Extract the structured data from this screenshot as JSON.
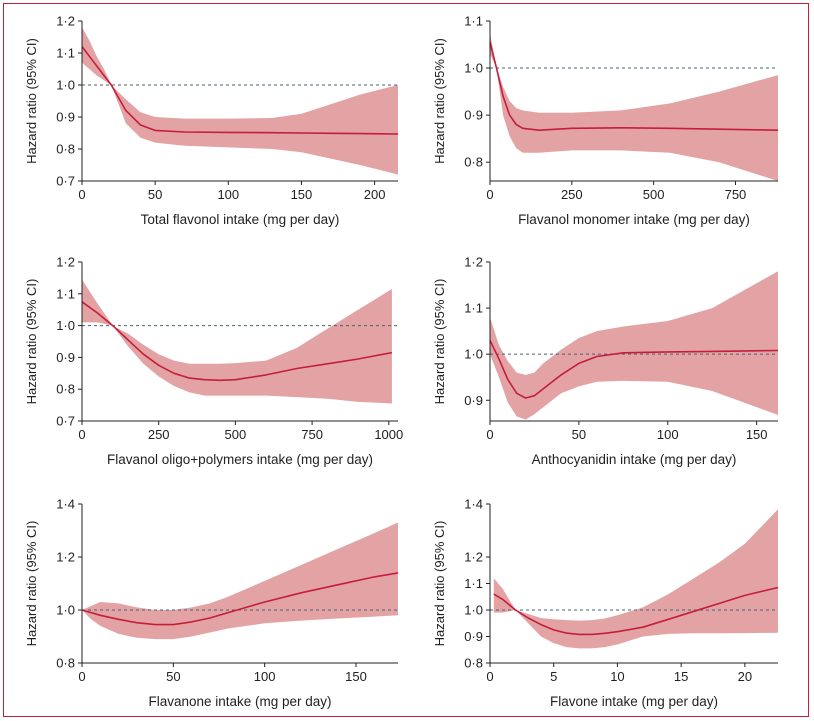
{
  "figure": {
    "border_color": "#c41e3a",
    "ci_color": "#e3a3a4",
    "line_color": "#c41e3a",
    "ref_line_color": "#4a6070"
  },
  "chart_data": [
    {
      "type": "line",
      "xlabel": "Total flavonol intake (mg per day)",
      "ylabel": "Hazard ratio (95% CI)",
      "xlim": [
        0,
        216
      ],
      "ylim": [
        0.7,
        1.2
      ],
      "xticks": [
        0,
        50,
        100,
        150,
        200
      ],
      "xtick_labels": [
        "0",
        "50",
        "100",
        "150",
        "200"
      ],
      "yticks": [
        0.7,
        0.8,
        0.9,
        1.0,
        1.1,
        1.2
      ],
      "ytick_labels": [
        "0·7",
        "0·8",
        "0·9",
        "1·0",
        "1·1",
        "1·2"
      ],
      "reference_line": 1.0,
      "series": [
        {
          "x": [
            0,
            5,
            10,
            15,
            20,
            30,
            40,
            50,
            70,
            100,
            130,
            150,
            170,
            190,
            216
          ],
          "y": [
            1.12,
            1.09,
            1.06,
            1.03,
            1.0,
            0.92,
            0.875,
            0.858,
            0.853,
            0.852,
            0.851,
            0.85,
            0.849,
            0.848,
            0.847
          ],
          "lower": [
            1.07,
            1.05,
            1.03,
            1.015,
            1.0,
            0.88,
            0.835,
            0.82,
            0.81,
            0.805,
            0.8,
            0.79,
            0.77,
            0.75,
            0.72
          ],
          "upper": [
            1.18,
            1.14,
            1.09,
            1.05,
            1.0,
            0.955,
            0.915,
            0.9,
            0.895,
            0.895,
            0.897,
            0.91,
            0.94,
            0.97,
            1.0
          ]
        }
      ]
    },
    {
      "type": "line",
      "xlabel": "Flavanol monomer intake (mg per day)",
      "ylabel": "Hazard ratio (95% CI)",
      "xlim": [
        0,
        880
      ],
      "ylim": [
        0.76,
        1.1
      ],
      "xticks": [
        0,
        250,
        500,
        750
      ],
      "xtick_labels": [
        "0",
        "250",
        "500",
        "750"
      ],
      "yticks": [
        0.8,
        0.9,
        1.0,
        1.1
      ],
      "ytick_labels": [
        "0·8",
        "0·9",
        "1·0",
        "1·1"
      ],
      "reference_line": 1.0,
      "series": [
        {
          "x": [
            0,
            20,
            40,
            60,
            80,
            100,
            150,
            250,
            400,
            550,
            700,
            880
          ],
          "y": [
            1.055,
            1.0,
            0.94,
            0.9,
            0.88,
            0.872,
            0.868,
            0.872,
            0.873,
            0.872,
            0.87,
            0.868
          ],
          "lower": [
            1.03,
            1.0,
            0.9,
            0.855,
            0.83,
            0.82,
            0.82,
            0.825,
            0.825,
            0.82,
            0.8,
            0.76
          ],
          "upper": [
            1.075,
            1.0,
            0.96,
            0.93,
            0.915,
            0.91,
            0.905,
            0.905,
            0.91,
            0.925,
            0.95,
            0.985
          ]
        }
      ]
    },
    {
      "type": "line",
      "xlabel": "Flavanol oligo+polymers intake (mg per day)",
      "ylabel": "Hazard ratio (95% CI)",
      "xlim": [
        0,
        1030
      ],
      "ylim": [
        0.7,
        1.2
      ],
      "xticks": [
        0,
        250,
        500,
        750,
        1000
      ],
      "xtick_labels": [
        "0",
        "250",
        "500",
        "750",
        "1000"
      ],
      "yticks": [
        0.7,
        0.8,
        0.9,
        1.0,
        1.1,
        1.2
      ],
      "ytick_labels": [
        "0·7",
        "0·8",
        "0·9",
        "1·0",
        "1·1",
        "1·2"
      ],
      "reference_line": 1.0,
      "series": [
        {
          "x": [
            0,
            50,
            100,
            150,
            200,
            250,
            300,
            350,
            400,
            450,
            500,
            600,
            700,
            800,
            900,
            1010
          ],
          "y": [
            1.075,
            1.04,
            1.0,
            0.955,
            0.91,
            0.875,
            0.85,
            0.835,
            0.83,
            0.828,
            0.83,
            0.845,
            0.865,
            0.88,
            0.895,
            0.915
          ],
          "lower": [
            1.01,
            1.01,
            1.0,
            0.935,
            0.88,
            0.84,
            0.81,
            0.79,
            0.78,
            0.78,
            0.78,
            0.78,
            0.775,
            0.77,
            0.76,
            0.755
          ],
          "upper": [
            1.145,
            1.07,
            1.0,
            0.975,
            0.94,
            0.91,
            0.89,
            0.88,
            0.88,
            0.88,
            0.882,
            0.89,
            0.93,
            0.99,
            1.05,
            1.115
          ]
        }
      ]
    },
    {
      "type": "line",
      "xlabel": "Anthocyanidin intake (mg per day)",
      "ylabel": "Hazard ratio (95% CI)",
      "xlim": [
        0,
        162
      ],
      "ylim": [
        0.855,
        1.2
      ],
      "xticks": [
        0,
        50,
        100,
        150
      ],
      "xtick_labels": [
        "0",
        "50",
        "100",
        "150"
      ],
      "yticks": [
        0.9,
        1.0,
        1.1,
        1.2
      ],
      "ytick_labels": [
        "0·9",
        "1·0",
        "1·1",
        "1·2"
      ],
      "reference_line": 1.0,
      "series": [
        {
          "x": [
            0,
            5,
            10,
            15,
            20,
            25,
            30,
            40,
            50,
            60,
            75,
            100,
            125,
            162
          ],
          "y": [
            1.03,
            0.99,
            0.945,
            0.915,
            0.905,
            0.91,
            0.925,
            0.955,
            0.98,
            0.995,
            1.003,
            1.005,
            1.006,
            1.008
          ],
          "lower": [
            1.0,
            0.95,
            0.895,
            0.865,
            0.858,
            0.87,
            0.885,
            0.915,
            0.93,
            0.94,
            0.942,
            0.94,
            0.92,
            0.868
          ],
          "upper": [
            1.08,
            1.02,
            0.985,
            0.96,
            0.955,
            0.96,
            0.98,
            1.01,
            1.035,
            1.05,
            1.06,
            1.072,
            1.1,
            1.18
          ]
        }
      ]
    },
    {
      "type": "line",
      "xlabel": "Flavanone intake (mg per day)",
      "ylabel": "Hazard ratio (95% CI)",
      "xlim": [
        0,
        173
      ],
      "ylim": [
        0.8,
        1.4
      ],
      "xticks": [
        0,
        50,
        100,
        150
      ],
      "xtick_labels": [
        "0",
        "50",
        "100",
        "150"
      ],
      "yticks": [
        0.8,
        1.0,
        1.2,
        1.4
      ],
      "ytick_labels": [
        "0·8",
        "1·0",
        "1·2",
        "1·4"
      ],
      "reference_line": 1.0,
      "series": [
        {
          "x": [
            0,
            5,
            10,
            20,
            30,
            40,
            50,
            60,
            70,
            80,
            100,
            120,
            140,
            160,
            173
          ],
          "y": [
            1.0,
            0.99,
            0.98,
            0.965,
            0.952,
            0.945,
            0.945,
            0.955,
            0.97,
            0.99,
            1.03,
            1.065,
            1.095,
            1.125,
            1.14
          ],
          "lower": [
            1.0,
            0.965,
            0.94,
            0.91,
            0.895,
            0.89,
            0.89,
            0.9,
            0.915,
            0.93,
            0.95,
            0.96,
            0.968,
            0.975,
            0.98
          ],
          "upper": [
            1.0,
            1.015,
            1.03,
            1.025,
            1.01,
            1.0,
            1.0,
            1.01,
            1.025,
            1.05,
            1.11,
            1.17,
            1.23,
            1.29,
            1.33
          ]
        }
      ]
    },
    {
      "type": "line",
      "xlabel": "Flavone intake (mg per day)",
      "ylabel": "Hazard ratio (95% CI)",
      "xlim": [
        0,
        22.6
      ],
      "ylim": [
        0.8,
        1.4
      ],
      "xticks": [
        0,
        5,
        10,
        15,
        20
      ],
      "xtick_labels": [
        "0",
        "5",
        "10",
        "15",
        "20"
      ],
      "yticks": [
        0.8,
        0.9,
        1.0,
        1.1,
        1.2,
        1.4
      ],
      "ytick_labels": [
        "0·8",
        "0·9",
        "1·0",
        "1·1",
        "1·2",
        "1·4"
      ],
      "reference_line": 1.0,
      "series": [
        {
          "x": [
            0.3,
            1,
            2,
            3,
            4,
            5,
            6,
            7,
            8,
            9,
            10,
            12,
            14,
            16,
            18,
            20,
            22.6
          ],
          "y": [
            1.06,
            1.04,
            1.0,
            0.97,
            0.945,
            0.925,
            0.913,
            0.908,
            0.908,
            0.912,
            0.918,
            0.935,
            0.965,
            0.995,
            1.025,
            1.055,
            1.085
          ],
          "lower": [
            0.99,
            0.99,
            1.0,
            0.95,
            0.9,
            0.875,
            0.86,
            0.855,
            0.855,
            0.86,
            0.87,
            0.9,
            0.91,
            0.912,
            0.912,
            0.913,
            0.914
          ],
          "upper": [
            1.12,
            1.08,
            1.0,
            0.985,
            0.97,
            0.965,
            0.962,
            0.96,
            0.962,
            0.968,
            0.98,
            1.01,
            1.06,
            1.12,
            1.18,
            1.25,
            1.38
          ]
        }
      ]
    }
  ]
}
